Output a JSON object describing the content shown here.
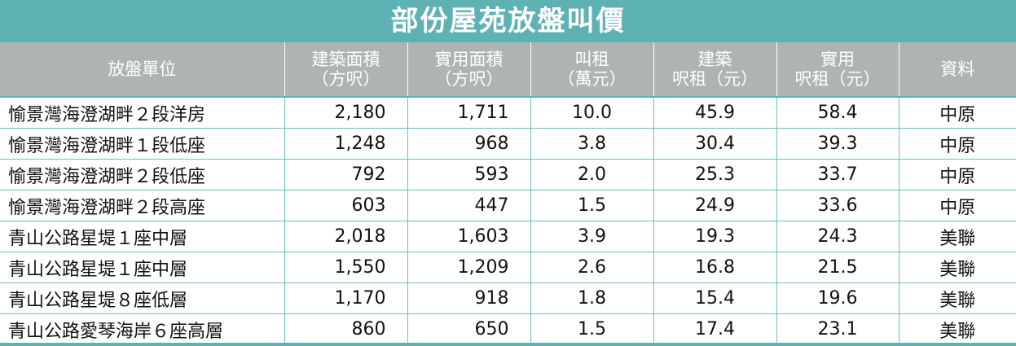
{
  "title": "部份屋苑放盤叫價",
  "headers": [
    {
      "line1": "放盤單位",
      "line2": ""
    },
    {
      "line1": "建築面積",
      "line2": "（方呎）"
    },
    {
      "line1": "實用面積",
      "line2": "（方呎）"
    },
    {
      "line1": "叫租",
      "line2": "（萬元）"
    },
    {
      "line1": "建築",
      "line2": "呎租（元）"
    },
    {
      "line1": "實用",
      "line2": "呎租（元）"
    },
    {
      "line1": "資料",
      "line2": ""
    }
  ],
  "rows": [
    {
      "unit": "愉景灣海澄湖畔２段洋房",
      "gross": "2,180",
      "saleable": "1,711",
      "rent": "10.0",
      "gross_psf": "45.9",
      "saleable_psf": "58.4",
      "source": "中原"
    },
    {
      "unit": "愉景灣海澄湖畔１段低座",
      "gross": "1,248",
      "saleable": "968",
      "rent": "3.8",
      "gross_psf": "30.4",
      "saleable_psf": "39.3",
      "source": "中原"
    },
    {
      "unit": "愉景灣海澄湖畔２段低座",
      "gross": "792",
      "saleable": "593",
      "rent": "2.0",
      "gross_psf": "25.3",
      "saleable_psf": "33.7",
      "source": "中原"
    },
    {
      "unit": "愉景灣海澄湖畔２段高座",
      "gross": "603",
      "saleable": "447",
      "rent": "1.5",
      "gross_psf": "24.9",
      "saleable_psf": "33.6",
      "source": "中原"
    },
    {
      "unit": "青山公路星堤１座中層",
      "gross": "2,018",
      "saleable": "1,603",
      "rent": "3.9",
      "gross_psf": "19.3",
      "saleable_psf": "24.3",
      "source": "美聯"
    },
    {
      "unit": "青山公路星堤１座中層",
      "gross": "1,550",
      "saleable": "1,209",
      "rent": "2.6",
      "gross_psf": "16.8",
      "saleable_psf": "21.5",
      "source": "美聯"
    },
    {
      "unit": "青山公路星堤８座低層",
      "gross": "1,170",
      "saleable": "918",
      "rent": "1.8",
      "gross_psf": "15.4",
      "saleable_psf": "19.6",
      "source": "美聯"
    },
    {
      "unit": "青山公路愛琴海岸６座高層",
      "gross": "860",
      "saleable": "650",
      "rent": "1.5",
      "gross_psf": "17.4",
      "saleable_psf": "23.1",
      "source": "美聯"
    }
  ],
  "colors": {
    "title_bg": "#5fb2b4",
    "header_bg": "#b0b3b4",
    "grid_line": "#6fbcbe"
  }
}
